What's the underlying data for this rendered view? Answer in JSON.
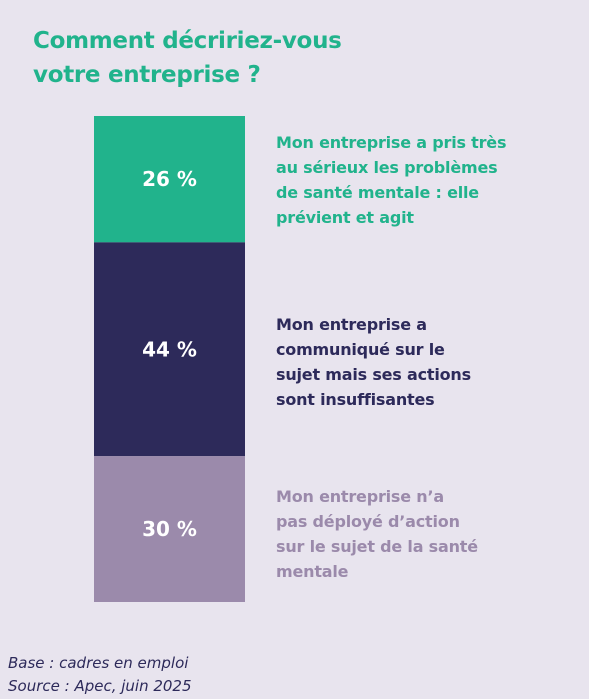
{
  "title": {
    "line1": "Comment décririez-vous",
    "line2": "votre entreprise ?"
  },
  "chart_data": {
    "type": "bar",
    "stacked": true,
    "unit": "%",
    "segments": [
      {
        "value": 26,
        "label": "26 %",
        "color": "#21b38c",
        "description": [
          "Mon entreprise a pris très",
          "au sérieux les problèmes",
          "de santé mentale : elle",
          "prévient et agit"
        ]
      },
      {
        "value": 44,
        "label": "44 %",
        "color": "#2d2a5a",
        "description": [
          "Mon entreprise a",
          "communiqué sur le",
          "sujet mais ses actions",
          "sont insuffisantes"
        ]
      },
      {
        "value": 30,
        "label": "30 %",
        "color": "#9b8aab",
        "description": [
          "Mon entreprise n’a",
          "pas déployé d’action",
          "sur le sujet de la santé",
          "mentale"
        ]
      }
    ]
  },
  "footnote": {
    "base": "Base : cadres en emploi",
    "source": "Source : Apec, juin 2025"
  }
}
